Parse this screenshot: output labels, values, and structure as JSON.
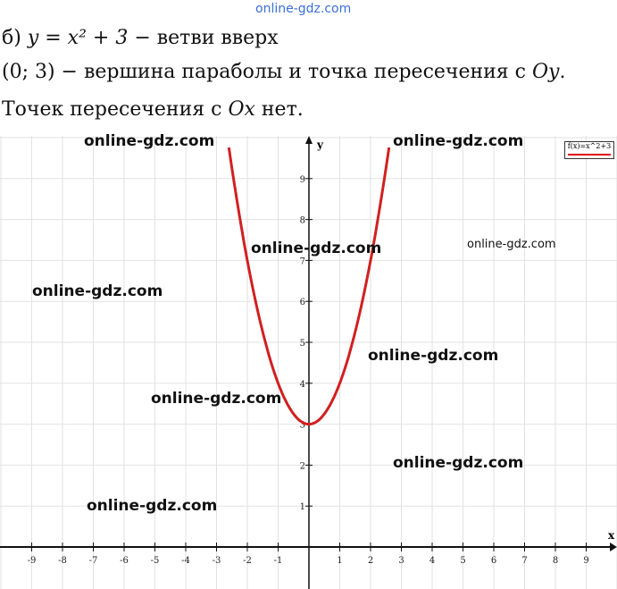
{
  "watermark_top": "online-gdz.com",
  "text": {
    "line1_prefix": "б) ",
    "line1_eq": "y = x² + 3",
    "line1_rest": " − ветви вверх",
    "line2_pre": "(0; 3) − вершина параболы и точка пересечения с ",
    "line2_axis": "Oy",
    "line2_end": ".",
    "line3_pre": "Точек пересечения с ",
    "line3_axis": "Ox",
    "line3_end": " нет."
  },
  "watermarks": [
    "online-gdz.com",
    "online-gdz.com",
    "online-gdz.com",
    "online-gdz.com",
    "online-gdz.com",
    "online-gdz.com",
    "online-gdz.com",
    "online-gdz.com",
    "online-gdz.com"
  ],
  "chart_data": {
    "type": "line",
    "function": "x^2+3",
    "legend": "f(x)=x^2+3",
    "legend_position": "top-right",
    "xlabel": "x",
    "ylabel": "y",
    "xlim": [
      -10,
      10
    ],
    "ylim": [
      -1,
      10
    ],
    "xticks": [
      -9,
      -8,
      -7,
      -6,
      -5,
      -4,
      -3,
      -2,
      -1,
      1,
      2,
      3,
      4,
      5,
      6,
      7,
      8,
      9
    ],
    "yticks": [
      1,
      2,
      3,
      4,
      5,
      6,
      7,
      8,
      9
    ],
    "grid": true,
    "series": [
      {
        "x": [
          -2.6,
          -2,
          -1,
          0,
          1,
          2,
          2.6
        ],
        "y": [
          9.76,
          7,
          4,
          3,
          4,
          7,
          9.76
        ],
        "color": "#d21f1f"
      }
    ]
  }
}
